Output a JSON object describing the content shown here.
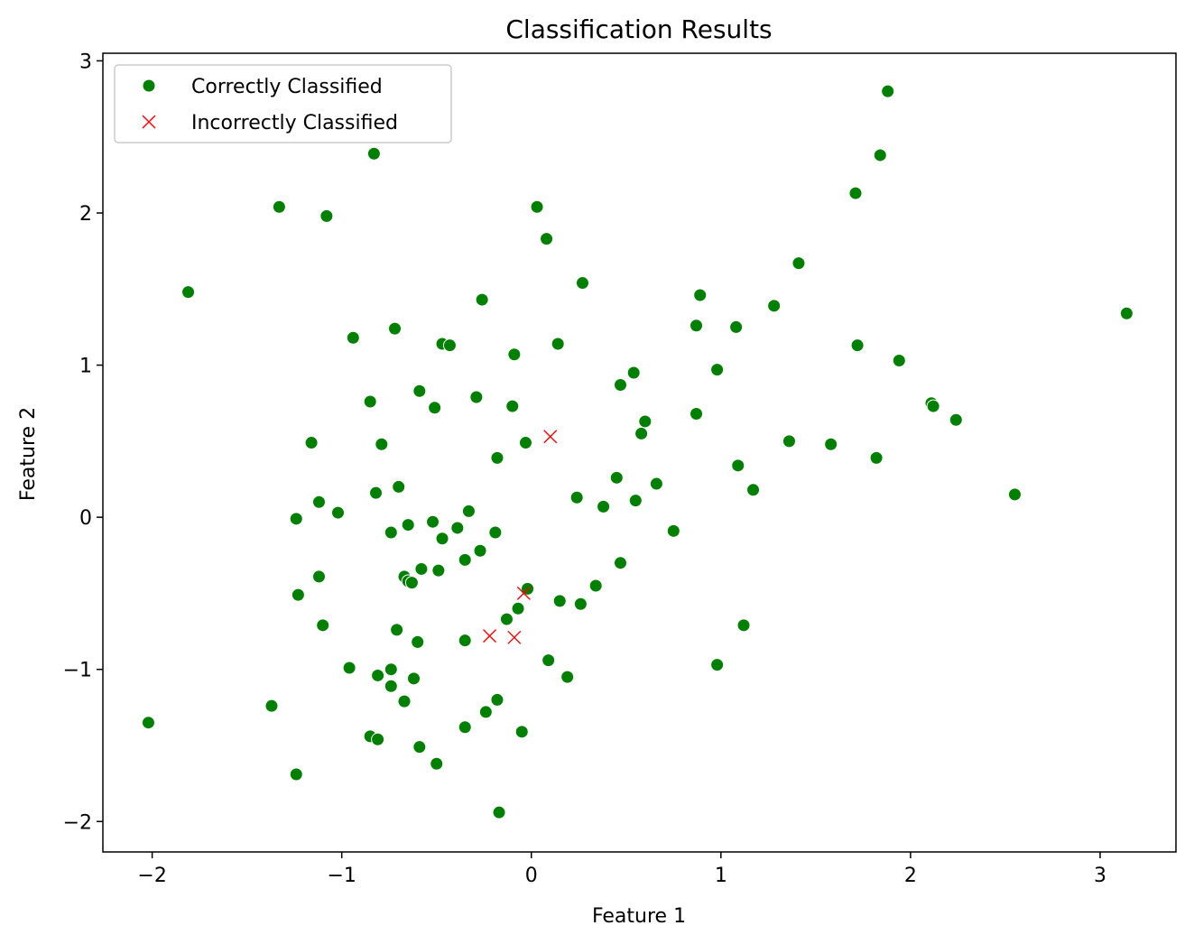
{
  "chart_data": {
    "type": "scatter",
    "title": "Classification Results",
    "xlabel": "Feature 1",
    "ylabel": "Feature 2",
    "xlim": [
      -2.26,
      3.4
    ],
    "ylim": [
      -2.2,
      3.05
    ],
    "xticks": [
      -2,
      -1,
      0,
      1,
      2,
      3
    ],
    "yticks": [
      -2,
      -1,
      0,
      1,
      2,
      3
    ],
    "tick_labels_x": [
      "−2",
      "−1",
      "0",
      "1",
      "2",
      "3"
    ],
    "tick_labels_y": [
      "−2",
      "−1",
      "0",
      "1",
      "2",
      "3"
    ],
    "grid": false,
    "legend_position": "top-left",
    "series": [
      {
        "name": "Correctly Classified",
        "color": "#008000",
        "marker": "circle",
        "points": [
          [
            -0.83,
            2.39
          ],
          [
            -1.33,
            2.04
          ],
          [
            -1.08,
            1.98
          ],
          [
            -1.81,
            1.48
          ],
          [
            0.03,
            2.04
          ],
          [
            0.08,
            1.83
          ],
          [
            1.88,
            2.8
          ],
          [
            1.84,
            2.38
          ],
          [
            1.71,
            2.13
          ],
          [
            1.41,
            1.67
          ],
          [
            1.28,
            1.39
          ],
          [
            0.89,
            1.46
          ],
          [
            0.27,
            1.54
          ],
          [
            -0.26,
            1.43
          ],
          [
            -0.72,
            1.24
          ],
          [
            -0.94,
            1.18
          ],
          [
            -0.47,
            1.14
          ],
          [
            -0.43,
            1.13
          ],
          [
            0.14,
            1.14
          ],
          [
            -0.09,
            1.07
          ],
          [
            0.87,
            1.26
          ],
          [
            1.08,
            1.25
          ],
          [
            1.72,
            1.13
          ],
          [
            1.94,
            1.03
          ],
          [
            0.98,
            0.97
          ],
          [
            0.54,
            0.95
          ],
          [
            0.47,
            0.87
          ],
          [
            -0.59,
            0.83
          ],
          [
            -0.29,
            0.79
          ],
          [
            -0.85,
            0.76
          ],
          [
            -0.51,
            0.72
          ],
          [
            -0.1,
            0.73
          ],
          [
            0.6,
            0.63
          ],
          [
            0.58,
            0.55
          ],
          [
            0.87,
            0.68
          ],
          [
            2.11,
            0.75
          ],
          [
            2.12,
            0.73
          ],
          [
            2.24,
            0.64
          ],
          [
            -1.16,
            0.49
          ],
          [
            -0.79,
            0.48
          ],
          [
            -0.03,
            0.49
          ],
          [
            -0.18,
            0.39
          ],
          [
            1.36,
            0.5
          ],
          [
            1.58,
            0.48
          ],
          [
            1.82,
            0.39
          ],
          [
            1.09,
            0.34
          ],
          [
            0.45,
            0.26
          ],
          [
            0.66,
            0.22
          ],
          [
            1.17,
            0.18
          ],
          [
            -0.7,
            0.2
          ],
          [
            -0.82,
            0.16
          ],
          [
            -1.12,
            0.1
          ],
          [
            -1.02,
            0.03
          ],
          [
            -1.24,
            -0.01
          ],
          [
            0.24,
            0.13
          ],
          [
            0.55,
            0.11
          ],
          [
            0.38,
            0.07
          ],
          [
            -0.33,
            0.04
          ],
          [
            -0.52,
            -0.03
          ],
          [
            -0.65,
            -0.05
          ],
          [
            -0.39,
            -0.07
          ],
          [
            -0.74,
            -0.1
          ],
          [
            -0.19,
            -0.1
          ],
          [
            0.75,
            -0.09
          ],
          [
            -0.47,
            -0.14
          ],
          [
            -0.27,
            -0.22
          ],
          [
            -0.35,
            -0.28
          ],
          [
            0.47,
            -0.3
          ],
          [
            -0.58,
            -0.34
          ],
          [
            -0.49,
            -0.35
          ],
          [
            -1.12,
            -0.39
          ],
          [
            -0.67,
            -0.39
          ],
          [
            -0.65,
            -0.42
          ],
          [
            -0.63,
            -0.43
          ],
          [
            0.34,
            -0.45
          ],
          [
            2.55,
            0.15
          ],
          [
            3.14,
            1.34
          ],
          [
            -0.02,
            -0.47
          ],
          [
            -1.23,
            -0.51
          ],
          [
            0.15,
            -0.55
          ],
          [
            0.26,
            -0.57
          ],
          [
            -0.07,
            -0.6
          ],
          [
            -0.13,
            -0.67
          ],
          [
            1.12,
            -0.71
          ],
          [
            -1.1,
            -0.71
          ],
          [
            -0.71,
            -0.74
          ],
          [
            -0.6,
            -0.82
          ],
          [
            -0.35,
            -0.81
          ],
          [
            0.09,
            -0.94
          ],
          [
            0.98,
            -0.97
          ],
          [
            -0.96,
            -0.99
          ],
          [
            -0.74,
            -1.0
          ],
          [
            -0.81,
            -1.04
          ],
          [
            -0.62,
            -1.06
          ],
          [
            0.19,
            -1.05
          ],
          [
            -0.74,
            -1.11
          ],
          [
            -0.67,
            -1.21
          ],
          [
            -0.18,
            -1.2
          ],
          [
            -1.37,
            -1.24
          ],
          [
            -0.24,
            -1.28
          ],
          [
            -2.02,
            -1.35
          ],
          [
            -0.35,
            -1.38
          ],
          [
            -0.85,
            -1.44
          ],
          [
            -0.81,
            -1.46
          ],
          [
            -0.05,
            -1.41
          ],
          [
            -0.59,
            -1.51
          ],
          [
            -0.5,
            -1.62
          ],
          [
            -1.24,
            -1.69
          ],
          [
            -0.17,
            -1.94
          ]
        ]
      },
      {
        "name": "Incorrectly Classified",
        "color": "#ff0000",
        "marker": "x",
        "points": [
          [
            0.1,
            0.53
          ],
          [
            -0.04,
            -0.5
          ],
          [
            -0.22,
            -0.78
          ],
          [
            -0.09,
            -0.79
          ]
        ]
      }
    ]
  }
}
